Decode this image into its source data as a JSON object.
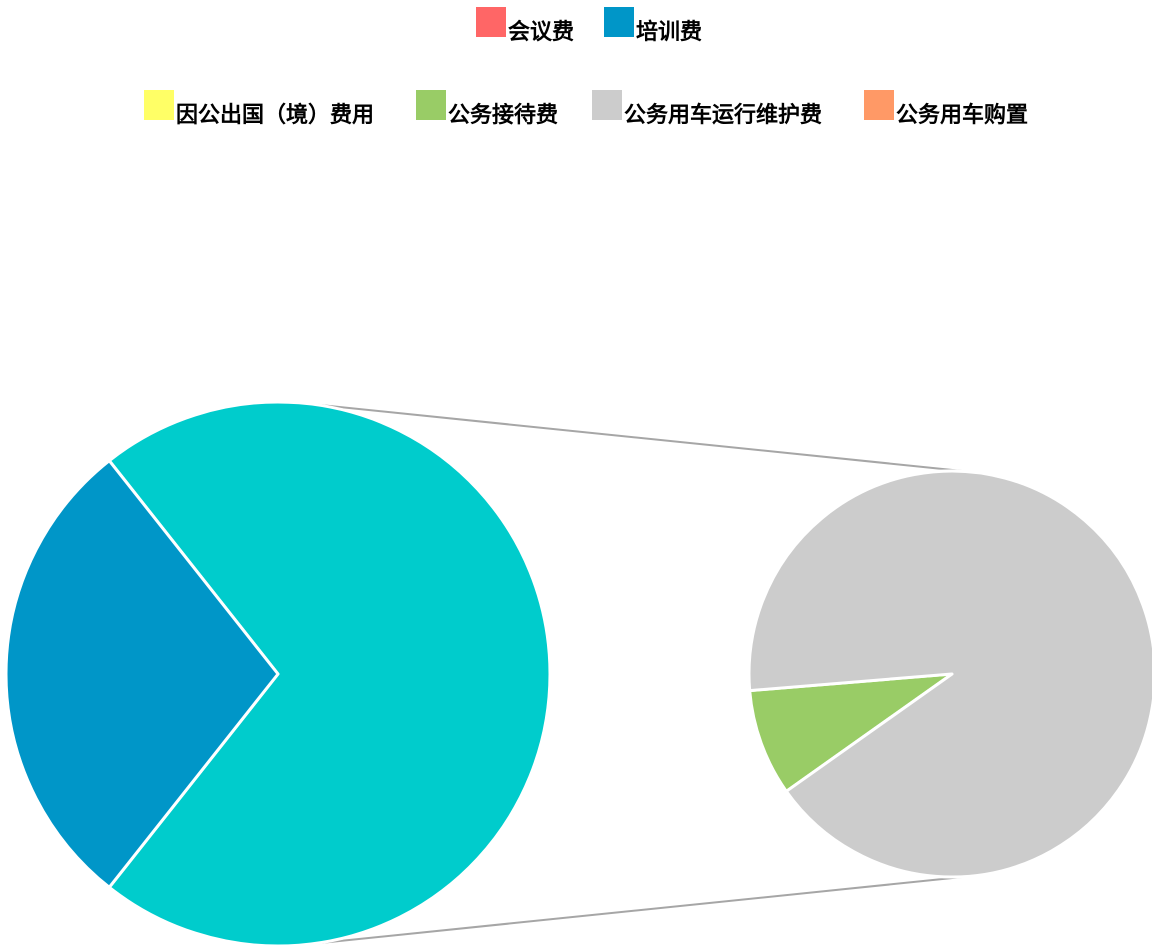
{
  "chart_data": {
    "type": "pie",
    "subtype": "pie-of-pie",
    "legend_position": "top",
    "legend": [
      {
        "name": "会议费",
        "color": "#FF6666"
      },
      {
        "name": "培训费",
        "color": "#0096C8"
      },
      {
        "name": "因公出国（境）费用",
        "color": "#FFFF66"
      },
      {
        "name": "公务用车运行维护费",
        "color": "#CCCCCC"
      },
      {
        "name": "公务接待费",
        "color": "#99CC66"
      },
      {
        "name": "公务用车购置",
        "color": "#FF9966"
      }
    ],
    "primary_pie": [
      {
        "name": "培训费",
        "value": 28.7,
        "color": "#0096C8"
      },
      {
        "name": "",
        "value": 71.3,
        "color": "#00CCCC",
        "role": "other-group"
      }
    ],
    "secondary_pie": [
      {
        "name": "公务接待费",
        "value": 8.5,
        "color": "#99CC66"
      },
      {
        "name": "公务用车运行维护费",
        "value": 91.5,
        "color": "#CCCCCC"
      }
    ],
    "data_labels": false
  }
}
